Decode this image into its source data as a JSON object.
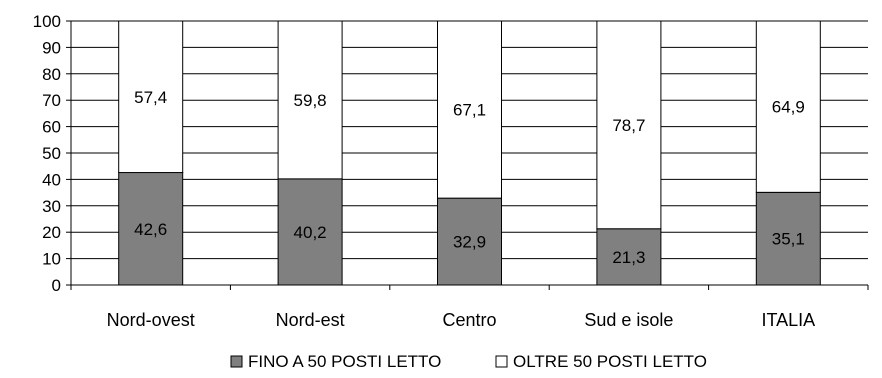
{
  "chart_data": {
    "type": "bar",
    "stacked": true,
    "categories": [
      "Nord-ovest",
      "Nord-est",
      "Centro",
      "Sud e isole",
      "ITALIA"
    ],
    "series": [
      {
        "name": "FINO A 50 POSTI LETTO",
        "values": [
          42.6,
          40.2,
          32.9,
          21.3,
          35.1
        ],
        "labels": [
          "42,6",
          "40,2",
          "32,9",
          "21,3",
          "35,1"
        ],
        "color": "#808080"
      },
      {
        "name": "OLTRE 50 POSTI LETTO",
        "values": [
          57.4,
          59.8,
          67.1,
          78.7,
          64.9
        ],
        "labels": [
          "57,4",
          "59,8",
          "67,1",
          "78,7",
          "64,9"
        ],
        "color": "#ffffff"
      }
    ],
    "ylim": [
      0,
      100
    ],
    "yticks": [
      "0",
      "10",
      "20",
      "30",
      "40",
      "50",
      "60",
      "70",
      "80",
      "90",
      "100"
    ],
    "grid": true,
    "legend_position": "bottom"
  }
}
